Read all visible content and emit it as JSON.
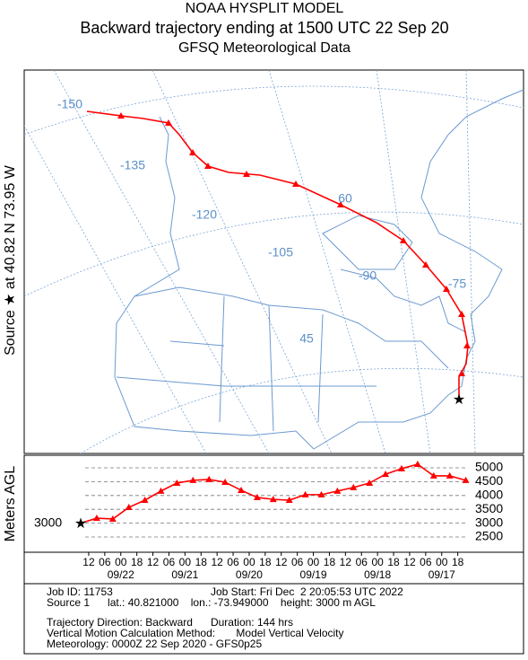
{
  "header": {
    "line1": "NOAA HYSPLIT MODEL",
    "line2": "Backward trajectory ending at 1500 UTC 22 Sep 20",
    "line3": "GFSQ Meteorological Data"
  },
  "map": {
    "source_label": "Source ★ at   40.82 N   73.95 W",
    "grid_labels": [
      "-150",
      "-135",
      "-120",
      "-105",
      "-90",
      "-75",
      "60",
      "45"
    ]
  },
  "chart_data": {
    "type": "line",
    "ylabel": "Meters AGL",
    "start_height": 3000,
    "yticks": [
      2500,
      3000,
      3500,
      4000,
      4500,
      5000
    ],
    "ylim": [
      2500,
      5000
    ],
    "time_labels": [
      "12",
      "06",
      "00",
      "18",
      "12",
      "06",
      "00",
      "18",
      "12",
      "06",
      "00",
      "18",
      "12",
      "06",
      "00",
      "18",
      "12",
      "06",
      "00",
      "18",
      "12",
      "06",
      "00",
      "18"
    ],
    "date_labels": [
      "09/22",
      "09/21",
      "09/20",
      "09/19",
      "09/18",
      "09/17"
    ],
    "series": [
      {
        "color": "#ff0000",
        "values": [
          3000,
          3180,
          3150,
          3570,
          3830,
          4160,
          4450,
          4550,
          4580,
          4480,
          4190,
          3930,
          3860,
          3830,
          4030,
          4030,
          4160,
          4290,
          4450,
          4770,
          4970,
          5130,
          4710,
          4710,
          4550
        ]
      }
    ]
  },
  "footer": {
    "job_id": "Job ID: 11753",
    "job_start": "Job Start: Fri Dec  2 20:05:53 UTC 2022",
    "source": "Source 1      lat.: 40.821000    lon.: -73.949000    height: 3000 m AGL",
    "direction": "Trajectory Direction: Backward      Duration: 144 hrs",
    "vertical": "Vertical Motion Calculation Method:       Model Vertical Velocity",
    "meteorology": "Meteorology: 0000Z 22 Sep 2020 - GFS0p25"
  }
}
